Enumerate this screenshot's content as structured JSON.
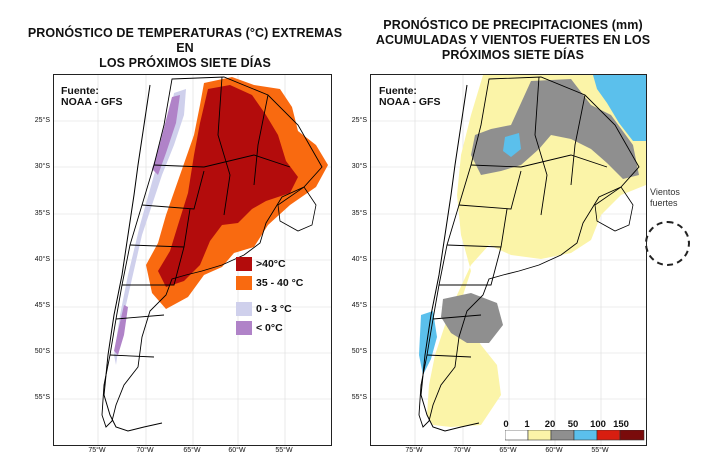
{
  "left_panel": {
    "title_line1": "PRONÓSTICO DE TEMPERATURAS (°C) EXTREMAS EN",
    "title_line2": "LOS PRÓXIMOS SIETE DÍAS",
    "source_line1": "Fuente:",
    "source_line2": "NOAA - GFS",
    "legend": [
      {
        "label": ">40°C",
        "color": "#b30c0c"
      },
      {
        "label": "35 - 40 °C",
        "color": "#f96a10"
      },
      {
        "label": "0 - 3 °C",
        "color": "#cfd0ec"
      },
      {
        "label": "< 0°C",
        "color": "#b083c8"
      }
    ]
  },
  "right_panel": {
    "title_line1": "PRONÓSTICO DE PRECIPITACIONES (mm)",
    "title_line2": "ACUMULADAS Y VIENTOS FUERTES EN LOS",
    "title_line3": "PRÓXIMOS SIETE DÍAS",
    "source_line1": "Fuente:",
    "source_line2": "NOAA - GFS",
    "wind_label_line1": "Vientos",
    "wind_label_line2": "fuertes",
    "colorbar": {
      "ticks": [
        "0",
        "1",
        "20",
        "50",
        "100",
        "150"
      ],
      "colors": [
        "#ffffff",
        "#fbf4a8",
        "#8f8f8f",
        "#5bc0ec",
        "#d81e10",
        "#7a0b0b"
      ]
    }
  },
  "lat_labels": [
    "25°S",
    "30°S",
    "35°S",
    "40°S",
    "45°S",
    "50°S",
    "55°S"
  ],
  "lon_labels": [
    "75°W",
    "70°W",
    "65°W",
    "60°W",
    "55°W"
  ]
}
